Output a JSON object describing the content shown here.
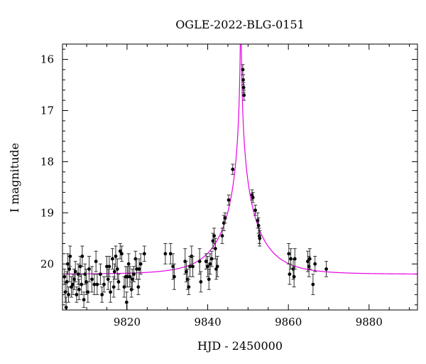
{
  "chart_data": {
    "type": "scatter",
    "title": "OGLE-2022-BLG-0151",
    "xlabel": "HJD - 2450000",
    "ylabel": "I magnitude",
    "xlim": [
      9804,
      9892
    ],
    "ylim": [
      20.9,
      15.7
    ],
    "y_inverted": true,
    "grid": false,
    "x_ticks": [
      "9820",
      "9840",
      "9860",
      "9880"
    ],
    "x_tick_values": [
      9820,
      9840,
      9860,
      9880
    ],
    "y_ticks": [
      "16",
      "17",
      "18",
      "19",
      "20"
    ],
    "y_tick_values": [
      16,
      17,
      18,
      19,
      20
    ],
    "colors": {
      "model": "#e600e6",
      "points": "#000000"
    },
    "model": {
      "name": "",
      "t0": 9848.2,
      "baseline_mag": 20.2,
      "amplitude": 9.5,
      "timescale": 0.6
    },
    "series": [
      {
        "name": "",
        "points": [
          [
            9804.5,
            20.25,
            0.15
          ],
          [
            9804.7,
            20.55,
            0.2
          ],
          [
            9804.9,
            20.85,
            0.2
          ],
          [
            9805.1,
            20.35,
            0.2
          ],
          [
            9805.3,
            20.0,
            0.2
          ],
          [
            9805.5,
            20.6,
            0.15
          ],
          [
            9805.7,
            20.1,
            0.25
          ],
          [
            9805.9,
            19.85,
            0.2
          ],
          [
            9806.2,
            20.45,
            0.2
          ],
          [
            9806.6,
            20.4,
            0.2
          ],
          [
            9806.9,
            20.3,
            0.2
          ],
          [
            9807.2,
            20.15,
            0.2
          ],
          [
            9807.5,
            20.6,
            0.15
          ],
          [
            9807.9,
            20.2,
            0.2
          ],
          [
            9808.1,
            20.5,
            0.2
          ],
          [
            9808.4,
            20.05,
            0.2
          ],
          [
            9808.7,
            20.4,
            0.2
          ],
          [
            9808.9,
            19.85,
            0.2
          ],
          [
            9809.3,
            20.7,
            0.15
          ],
          [
            9809.6,
            20.2,
            0.2
          ],
          [
            9809.9,
            20.35,
            0.25
          ],
          [
            9810.3,
            20.55,
            0.2
          ],
          [
            9810.6,
            20.1,
            0.25
          ],
          [
            9811.3,
            20.3,
            0.25
          ],
          [
            9811.9,
            20.4,
            0.2
          ],
          [
            9812.3,
            19.95,
            0.2
          ],
          [
            9812.6,
            20.4,
            0.2
          ],
          [
            9813.4,
            20.2,
            0.2
          ],
          [
            9813.8,
            20.6,
            0.15
          ],
          [
            9814.3,
            20.4,
            0.15
          ],
          [
            9815.0,
            20.05,
            0.2
          ],
          [
            9815.3,
            20.3,
            0.2
          ],
          [
            9815.6,
            20.05,
            0.2
          ],
          [
            9815.9,
            20.55,
            0.2
          ],
          [
            9816.4,
            19.9,
            0.2
          ],
          [
            9816.7,
            20.45,
            0.2
          ],
          [
            9816.9,
            20.15,
            0.15
          ],
          [
            9817.2,
            19.85,
            0.2
          ],
          [
            9817.6,
            20.1,
            0.2
          ],
          [
            9817.9,
            20.35,
            0.15
          ],
          [
            9818.3,
            19.75,
            0.15
          ],
          [
            9818.7,
            19.8,
            0.15
          ],
          [
            9819.3,
            20.45,
            0.2
          ],
          [
            9819.7,
            20.25,
            0.2
          ],
          [
            9819.9,
            20.75,
            0.2
          ],
          [
            9820.1,
            20.25,
            0.2
          ],
          [
            9820.4,
            20.0,
            0.2
          ],
          [
            9820.7,
            20.25,
            0.2
          ],
          [
            9821.1,
            20.5,
            0.15
          ],
          [
            9821.3,
            20.3,
            0.2
          ],
          [
            9821.7,
            20.2,
            0.15
          ],
          [
            9822.1,
            19.9,
            0.15
          ],
          [
            9822.4,
            20.1,
            0.2
          ],
          [
            9822.8,
            20.45,
            0.15
          ],
          [
            9823.0,
            20.1,
            0.2
          ],
          [
            9823.4,
            20.0,
            0.2
          ],
          [
            9824.3,
            19.8,
            0.15
          ],
          [
            9829.5,
            19.8,
            0.2
          ],
          [
            9830.8,
            19.8,
            0.2
          ],
          [
            9831.4,
            20.05,
            0.25
          ],
          [
            9831.7,
            20.25,
            0.25
          ],
          [
            9834.4,
            19.95,
            0.25
          ],
          [
            9834.7,
            20.15,
            0.2
          ],
          [
            9835.0,
            20.3,
            0.2
          ],
          [
            9835.3,
            20.45,
            0.15
          ],
          [
            9835.6,
            20.05,
            0.2
          ],
          [
            9836.0,
            19.85,
            0.2
          ],
          [
            9836.3,
            20.05,
            0.2
          ],
          [
            9838.0,
            19.95,
            0.25
          ],
          [
            9838.3,
            20.35,
            0.2
          ],
          [
            9839.6,
            19.95,
            0.15
          ],
          [
            9840.0,
            20.05,
            0.2
          ],
          [
            9840.3,
            20.3,
            0.2
          ],
          [
            9840.6,
            20.0,
            0.2
          ],
          [
            9841.0,
            19.9,
            0.15
          ],
          [
            9841.3,
            19.55,
            0.15
          ],
          [
            9841.6,
            19.45,
            0.15
          ],
          [
            9841.9,
            19.7,
            0.2
          ],
          [
            9842.1,
            20.1,
            0.2
          ],
          [
            9842.4,
            20.05,
            0.2
          ],
          [
            9843.6,
            19.45,
            0.15
          ],
          [
            9844.0,
            19.2,
            0.15
          ],
          [
            9844.3,
            19.1,
            0.1
          ],
          [
            9845.2,
            18.75,
            0.1
          ],
          [
            9846.2,
            18.15,
            0.1
          ],
          [
            9848.7,
            16.2,
            0.1
          ],
          [
            9848.8,
            16.4,
            0.1
          ],
          [
            9848.9,
            16.55,
            0.1
          ],
          [
            9849.0,
            16.7,
            0.1
          ],
          [
            9851.0,
            18.65,
            0.1
          ],
          [
            9851.2,
            18.7,
            0.1
          ],
          [
            9851.8,
            18.95,
            0.1
          ],
          [
            9852.4,
            19.15,
            0.15
          ],
          [
            9852.6,
            19.25,
            0.15
          ],
          [
            9852.8,
            19.45,
            0.15
          ],
          [
            9852.9,
            19.5,
            0.15
          ],
          [
            9860.1,
            19.8,
            0.2
          ],
          [
            9860.3,
            20.2,
            0.2
          ],
          [
            9860.6,
            19.9,
            0.2
          ],
          [
            9861.2,
            20.1,
            0.2
          ],
          [
            9861.4,
            20.25,
            0.2
          ],
          [
            9861.6,
            19.9,
            0.2
          ],
          [
            9864.8,
            19.95,
            0.2
          ],
          [
            9865.1,
            20.05,
            0.2
          ],
          [
            9865.3,
            19.9,
            0.2
          ],
          [
            9866.1,
            20.4,
            0.2
          ],
          [
            9866.6,
            20.0,
            0.15
          ],
          [
            9869.4,
            20.1,
            0.15
          ]
        ]
      }
    ]
  }
}
